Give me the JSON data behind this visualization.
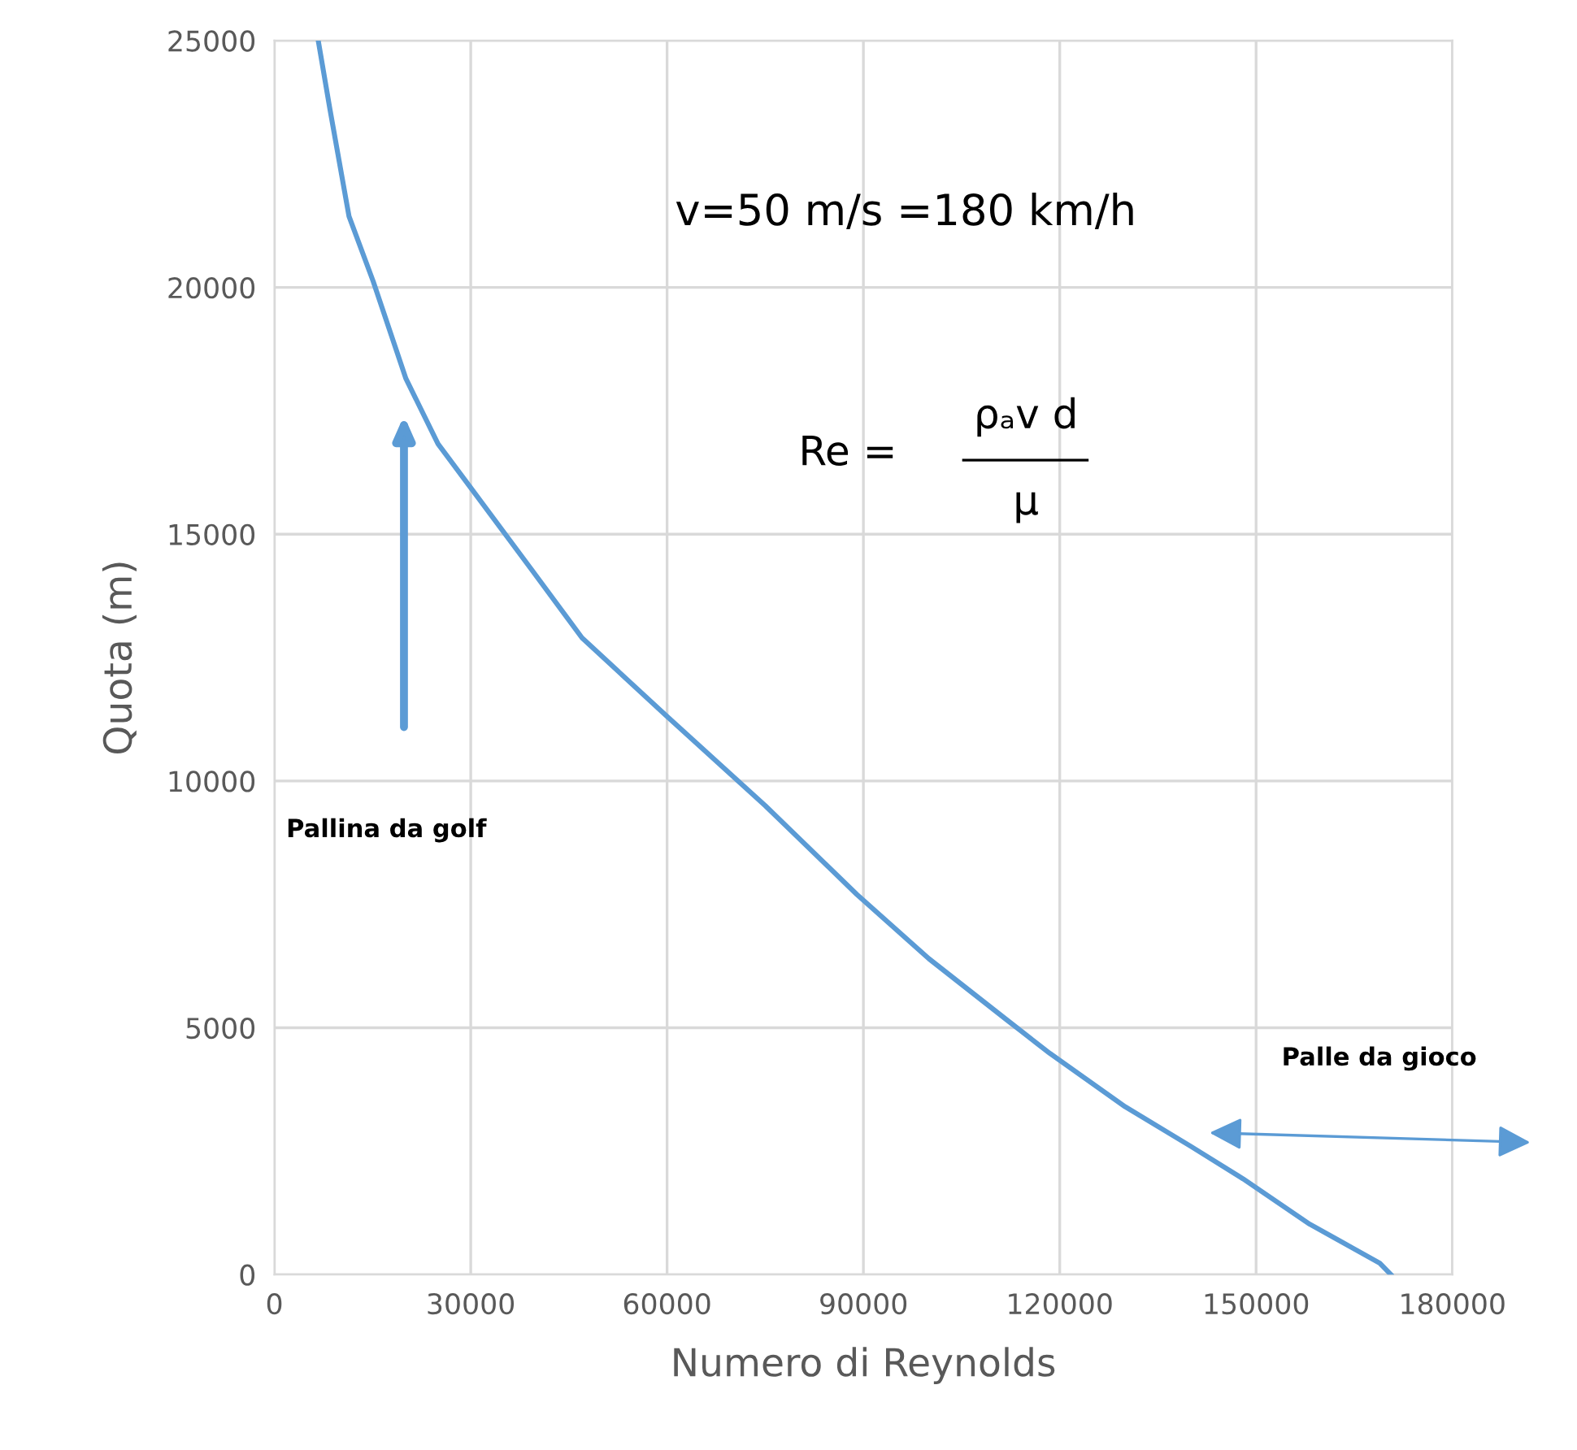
{
  "chart_data": {
    "type": "line",
    "xlabel": "Numero di Reynolds",
    "ylabel": "Quota (m)",
    "series": [
      {
        "color": "#5b9bd5",
        "x": [
          6700,
          8500,
          11400,
          15100,
          20100,
          25000,
          30000,
          39200,
          47000,
          59800,
          75000,
          89000,
          100000,
          112100,
          118500,
          130000,
          140000,
          148000,
          158200,
          165000,
          168900,
          170600
        ],
        "values": [
          25000,
          23600,
          21440,
          20120,
          18150,
          16830,
          15940,
          14300,
          12900,
          11330,
          9500,
          7700,
          6400,
          5140,
          4480,
          3400,
          2600,
          1940,
          1020,
          520,
          230,
          0
        ]
      }
    ],
    "xlim": [
      0,
      180000
    ],
    "ylim": [
      0,
      25000
    ],
    "xticks": [
      0,
      30000,
      60000,
      90000,
      120000,
      150000,
      180000
    ],
    "yticks": [
      0,
      5000,
      10000,
      15000,
      20000,
      25000
    ],
    "grid": true,
    "line_style": "solid",
    "marker": "none",
    "annotations": [
      "v=50 m/s =180 km/h",
      "Re =",
      "ρₐv d",
      "μ",
      "Pallina da golf",
      "Palle da gioco"
    ]
  }
}
